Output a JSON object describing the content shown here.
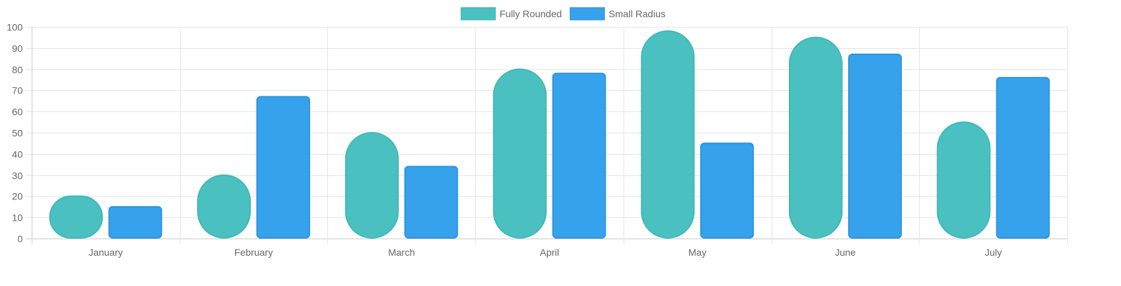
{
  "chart_data": {
    "type": "bar",
    "categories": [
      "January",
      "February",
      "March",
      "April",
      "May",
      "June",
      "July"
    ],
    "series": [
      {
        "name": "Fully Rounded",
        "values": [
          20,
          30,
          50,
          80,
          98,
          95,
          55
        ],
        "fill": "#4bc0c0",
        "stroke": "#42b8b8",
        "corner_style": "fully rounded"
      },
      {
        "name": "Small Radius",
        "values": [
          15,
          67,
          34,
          78,
          45,
          87,
          76
        ],
        "fill": "#36a2eb",
        "stroke": "#2f95e0",
        "corner_style": "small radius"
      }
    ],
    "ylim": [
      0,
      100
    ],
    "yticks": [
      0,
      10,
      20,
      30,
      40,
      50,
      60,
      70,
      80,
      90,
      100
    ],
    "grid": true,
    "legend_position": "top-center",
    "title": "",
    "xlabel": "",
    "ylabel": ""
  },
  "colors": {
    "grid": "#e5e5e5",
    "axis": "#cccccc",
    "text": "#666666"
  }
}
